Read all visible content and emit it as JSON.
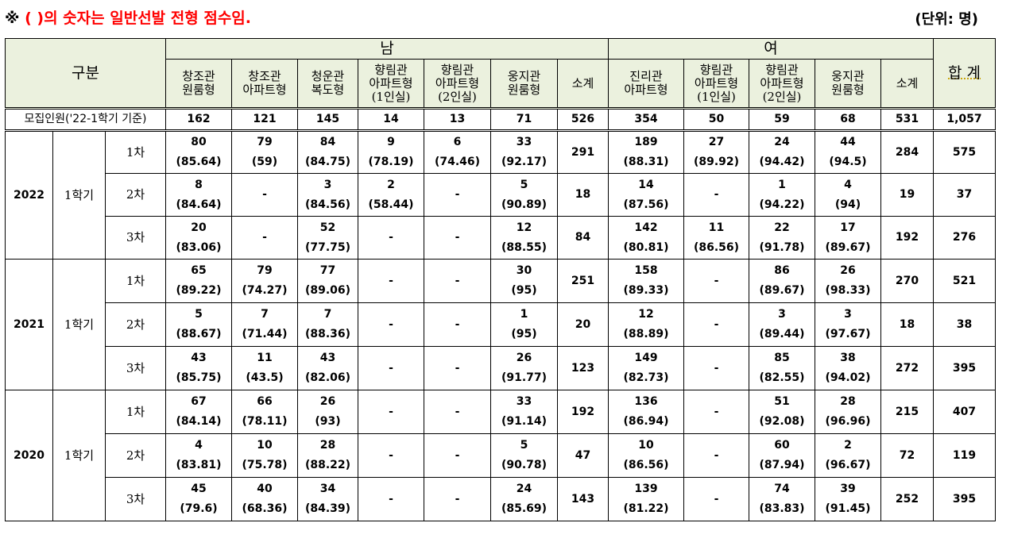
{
  "note": {
    "mark": "※",
    "text": " ( )의 숫자는 일반선발 전형 점수임."
  },
  "unit": "(단위:  명)",
  "header": {
    "category": "구분",
    "male": "남",
    "female": "여",
    "total": "합 계",
    "male_cols": [
      [
        "창조관",
        "원룸형"
      ],
      [
        "창조관",
        "아파트형"
      ],
      [
        "청운관",
        "복도형"
      ],
      [
        "향림관",
        "아파트형",
        "(1인실)"
      ],
      [
        "향림관",
        "아파트형",
        "(2인실)"
      ],
      [
        "웅지관",
        "원룸형"
      ],
      [
        "소계"
      ]
    ],
    "female_cols": [
      [
        "진리관",
        "아파트형"
      ],
      [
        "향림관",
        "아파트형",
        "(1인실)"
      ],
      [
        "향림관",
        "아파트형",
        "(2인실)"
      ],
      [
        "웅지관",
        "원룸형"
      ],
      [
        "소계"
      ]
    ]
  },
  "recruit": {
    "label": "모집인원('22-1학기 기준)",
    "values": [
      "162",
      "121",
      "145",
      "14",
      "13",
      "71",
      "526",
      "354",
      "50",
      "59",
      "68",
      "531",
      "1,057"
    ]
  },
  "years": [
    {
      "year": "2022",
      "semester": "1학기",
      "rounds": [
        {
          "round": "1차",
          "cells": [
            [
              "80",
              "(85.64)"
            ],
            [
              "79",
              "(59)"
            ],
            [
              "84",
              "(84.75)"
            ],
            [
              "9",
              "(78.19)"
            ],
            [
              "6",
              "(74.46)"
            ],
            [
              "33",
              "(92.17)"
            ],
            [
              "291"
            ],
            [
              "189",
              "(88.31)"
            ],
            [
              "27",
              "(89.92)"
            ],
            [
              "24",
              "(94.42)"
            ],
            [
              "44",
              "(94.5)"
            ],
            [
              "284"
            ],
            [
              "575"
            ]
          ]
        },
        {
          "round": "2차",
          "cells": [
            [
              "8",
              "(84.64)"
            ],
            [
              "-"
            ],
            [
              "3",
              "(84.56)"
            ],
            [
              "2",
              "(58.44)"
            ],
            [
              "-"
            ],
            [
              "5",
              "(90.89)"
            ],
            [
              "18"
            ],
            [
              "14",
              "(87.56)"
            ],
            [
              "-"
            ],
            [
              "1",
              "(94.22)"
            ],
            [
              "4",
              "(94)"
            ],
            [
              "19"
            ],
            [
              "37"
            ]
          ]
        },
        {
          "round": "3차",
          "cells": [
            [
              "20",
              "(83.06)"
            ],
            [
              "-"
            ],
            [
              "52",
              "(77.75)"
            ],
            [
              "-"
            ],
            [
              "-"
            ],
            [
              "12",
              "(88.55)"
            ],
            [
              "84"
            ],
            [
              "142",
              "(80.81)"
            ],
            [
              "11",
              "(86.56)"
            ],
            [
              "22",
              "(91.78)"
            ],
            [
              "17",
              "(89.67)"
            ],
            [
              "192"
            ],
            [
              "276"
            ]
          ]
        }
      ]
    },
    {
      "year": "2021",
      "semester": "1학기",
      "rounds": [
        {
          "round": "1차",
          "cells": [
            [
              "65",
              "(89.22)"
            ],
            [
              "79",
              "(74.27)"
            ],
            [
              "77",
              "(89.06)"
            ],
            [
              "-"
            ],
            [
              "-"
            ],
            [
              "30",
              "(95)"
            ],
            [
              "251"
            ],
            [
              "158",
              "(89.33)"
            ],
            [
              "-"
            ],
            [
              "86",
              "(89.67)"
            ],
            [
              "26",
              "(98.33)"
            ],
            [
              "270"
            ],
            [
              "521"
            ]
          ]
        },
        {
          "round": "2차",
          "cells": [
            [
              "5",
              "(88.67)"
            ],
            [
              "7",
              "(71.44)"
            ],
            [
              "7",
              "(88.36)"
            ],
            [
              "-"
            ],
            [
              "-"
            ],
            [
              "1",
              "(95)"
            ],
            [
              "20"
            ],
            [
              "12",
              "(88.89)"
            ],
            [
              "-"
            ],
            [
              "3",
              "(89.44)"
            ],
            [
              "3",
              "(97.67)"
            ],
            [
              "18"
            ],
            [
              "38"
            ]
          ]
        },
        {
          "round": "3차",
          "cells": [
            [
              "43",
              "(85.75)"
            ],
            [
              "11",
              "(43.5)"
            ],
            [
              "43",
              "(82.06)"
            ],
            [
              "-"
            ],
            [
              "-"
            ],
            [
              "26",
              "(91.77)"
            ],
            [
              "123"
            ],
            [
              "149",
              "(82.73)"
            ],
            [
              "-"
            ],
            [
              "85",
              "(82.55)"
            ],
            [
              "38",
              "(94.02)"
            ],
            [
              "272"
            ],
            [
              "395"
            ]
          ]
        }
      ]
    },
    {
      "year": "2020",
      "semester": "1학기",
      "rounds": [
        {
          "round": "1차",
          "cells": [
            [
              "67",
              "(84.14)"
            ],
            [
              "66",
              "(78.11)"
            ],
            [
              "26",
              "(93)"
            ],
            [
              "-"
            ],
            [
              "-"
            ],
            [
              "33",
              "(91.14)"
            ],
            [
              "192"
            ],
            [
              "136",
              "(86.94)"
            ],
            [
              "-"
            ],
            [
              "51",
              "(92.08)"
            ],
            [
              "28",
              "(96.96)"
            ],
            [
              "215"
            ],
            [
              "407"
            ]
          ]
        },
        {
          "round": "2차",
          "cells": [
            [
              "4",
              "(83.81)"
            ],
            [
              "10",
              "(75.78)"
            ],
            [
              "28",
              "(88.22)"
            ],
            [
              "-"
            ],
            [
              "-"
            ],
            [
              "5",
              "(90.78)"
            ],
            [
              "47"
            ],
            [
              "10",
              "(86.56)"
            ],
            [
              "-"
            ],
            [
              "60",
              "(87.94)"
            ],
            [
              "2",
              "(96.67)"
            ],
            [
              "72"
            ],
            [
              "119"
            ]
          ]
        },
        {
          "round": "3차",
          "cells": [
            [
              "45",
              "(79.6)"
            ],
            [
              "40",
              "(68.36)"
            ],
            [
              "34",
              "(84.39)"
            ],
            [
              "-"
            ],
            [
              "-"
            ],
            [
              "24",
              "(85.69)"
            ],
            [
              "143"
            ],
            [
              "139",
              "(81.22)"
            ],
            [
              "-"
            ],
            [
              "74",
              "(83.83)"
            ],
            [
              "39",
              "(91.45)"
            ],
            [
              "252"
            ],
            [
              "395"
            ]
          ]
        }
      ]
    }
  ]
}
